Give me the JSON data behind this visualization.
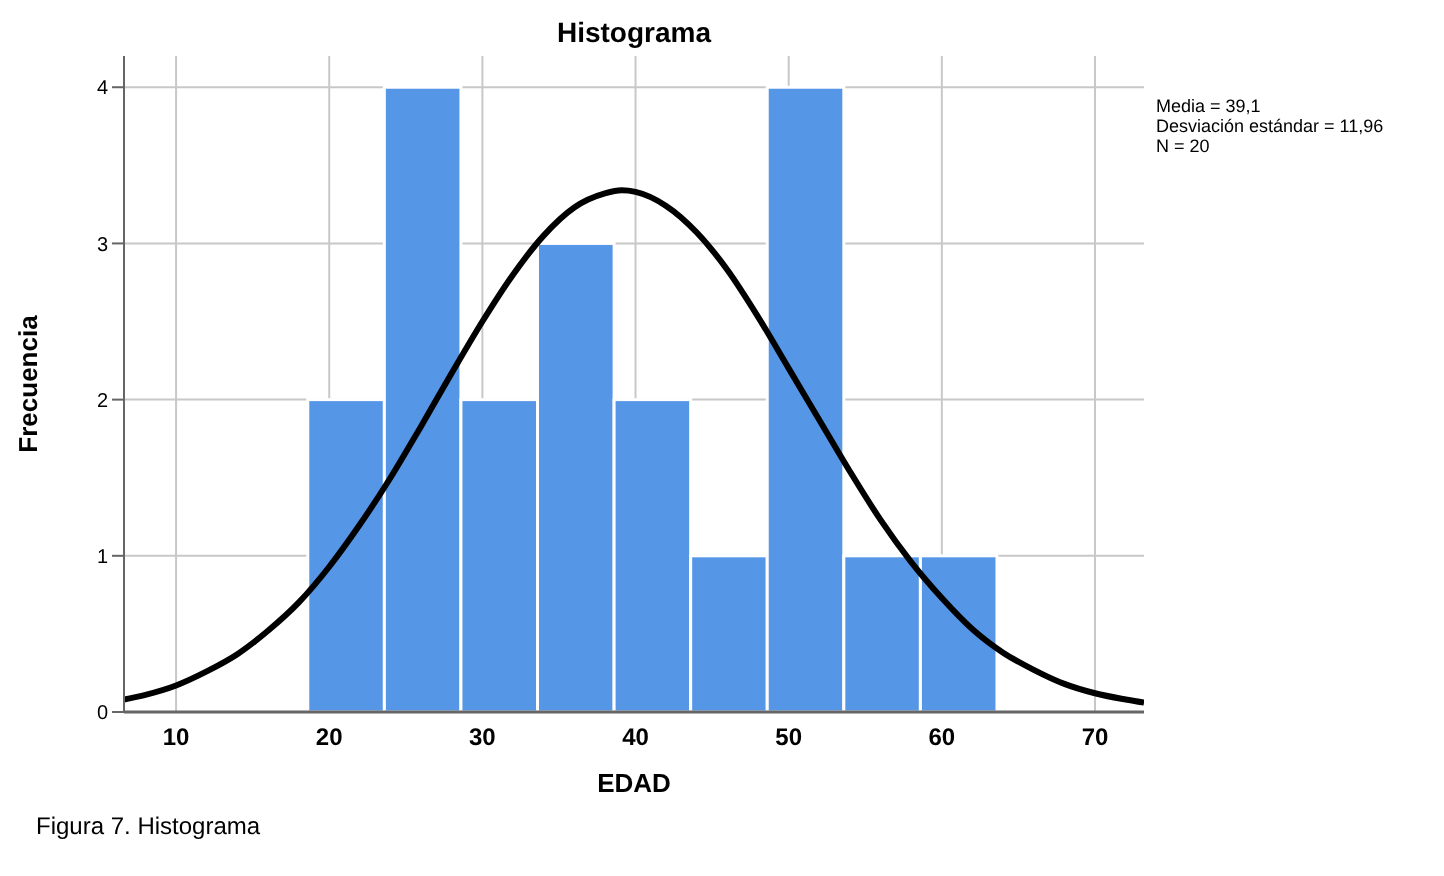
{
  "chart_data": {
    "type": "histogram",
    "title": "Histograma",
    "xlabel": "EDAD",
    "ylabel": "Frecuencia",
    "bins": [
      18.6,
      23.6,
      28.6,
      33.6,
      38.6,
      43.6,
      48.6,
      53.6,
      58.6,
      63.6
    ],
    "values": [
      2,
      4,
      2,
      3,
      2,
      1,
      4,
      1,
      1
    ],
    "color": "#5596e6",
    "xlim": [
      6.6,
      73.2
    ],
    "xticks": [
      10,
      20,
      30,
      40,
      50,
      60,
      70
    ],
    "ylim": [
      0,
      4.2
    ],
    "yticks": [
      0,
      1,
      2,
      3,
      4
    ],
    "grid": true,
    "series": [
      {
        "type": "line",
        "color": "#000000",
        "x": [
          6.6,
          8,
          10,
          12,
          14,
          16,
          18,
          20,
          22,
          24,
          26,
          28,
          30,
          32,
          34,
          36,
          38,
          39.1,
          40,
          42,
          44,
          46,
          48,
          50,
          52,
          54,
          56,
          58,
          60,
          62,
          64,
          66,
          68,
          70,
          72,
          73.2
        ],
        "values": [
          0.08,
          0.11,
          0.17,
          0.26,
          0.37,
          0.52,
          0.7,
          0.93,
          1.2,
          1.5,
          1.83,
          2.17,
          2.5,
          2.8,
          3.05,
          3.23,
          3.32,
          3.34,
          3.33,
          3.24,
          3.07,
          2.83,
          2.53,
          2.2,
          1.87,
          1.54,
          1.23,
          0.96,
          0.73,
          0.53,
          0.38,
          0.27,
          0.18,
          0.12,
          0.08,
          0.06
        ]
      }
    ],
    "annotations": [
      "Media = 39,1",
      "Desviación estándar = 11,96",
      "N = 20",
      "Figura 7. Histograma"
    ]
  }
}
